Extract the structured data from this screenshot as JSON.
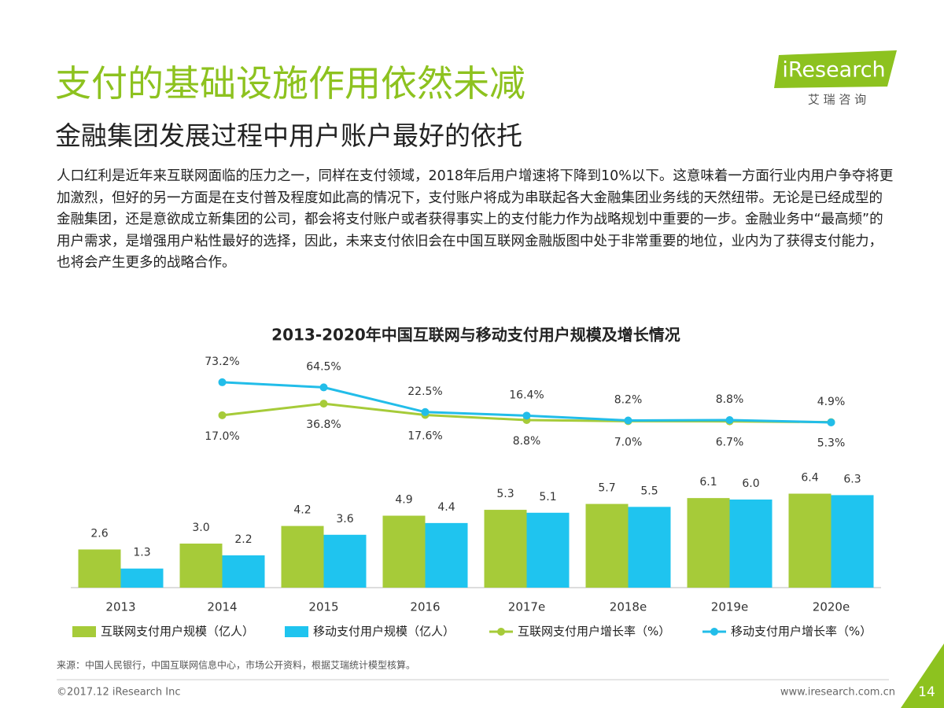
{
  "header": {
    "title": "支付的基础设施作用依然未减",
    "subtitle": "金融集团发展过程中用户账户最好的依托"
  },
  "logo": {
    "name": "iResearch",
    "subtitle": "艾 瑞 咨 询"
  },
  "body": {
    "paragraph": "人口红利是近年来互联网面临的压力之一，同样在支付领域，2018年后用户增速将下降到10%以下。这意味着一方面行业内用户争夺将更加激烈，但好的另一方面是在支付普及程度如此高的情况下，支付账户将成为串联起各大金融集团业务线的天然纽带。无论是已经成型的金融集团，还是意欲成立新集团的公司，都会将支付账户或者获得事实上的支付能力作为战略规划中重要的一步。金融业务中“最高频”的用户需求，是增强用户粘性最好的选择，因此，未来支付依旧会在中国互联网金融版图中处于非常重要的地位，业内为了获得支付能力，也将会产生更多的战略合作。"
  },
  "chart_data": {
    "type": "combo",
    "title": "2013-2020年中国互联网与移动支付用户规模及增长情况",
    "categories": [
      "2013",
      "2014",
      "2015",
      "2016",
      "2017e",
      "2018e",
      "2019e",
      "2020e"
    ],
    "ylim": [
      0,
      7.5
    ],
    "y2lim": [
      0,
      140
    ],
    "series": [
      {
        "name": "互联网支付用户规模（亿人）",
        "type": "bar",
        "color": "#a6cb39",
        "values": [
          2.6,
          3.0,
          4.2,
          4.9,
          5.3,
          5.7,
          6.1,
          6.4
        ],
        "value_labels": [
          "2.6",
          "3.0",
          "4.2",
          "4.9",
          "5.3",
          "5.7",
          "6.1",
          "6.4"
        ]
      },
      {
        "name": "移动支付用户规模（亿人）",
        "type": "bar",
        "color": "#1fc4ef",
        "values": [
          1.3,
          2.2,
          3.6,
          4.4,
          5.1,
          5.5,
          6.0,
          6.3
        ],
        "value_labels": [
          "1.3",
          "2.2",
          "3.6",
          "4.4",
          "5.1",
          "5.5",
          "6.0",
          "6.3"
        ]
      },
      {
        "name": "互联网支付用户增长率（%）",
        "type": "line",
        "axis": "y2",
        "color": "#a6cb39",
        "values": [
          null,
          17.0,
          36.8,
          17.6,
          8.8,
          7.0,
          6.7,
          5.3
        ],
        "value_labels": [
          null,
          "17.0%",
          "36.8%",
          "17.6%",
          "8.8%",
          "7.0%",
          "6.7%",
          "5.3%"
        ]
      },
      {
        "name": "移动支付用户增长率（%）",
        "type": "line",
        "axis": "y2",
        "color": "#22bde9",
        "values": [
          null,
          73.2,
          64.5,
          22.5,
          16.4,
          8.2,
          8.8,
          4.9
        ],
        "value_labels": [
          null,
          "73.2%",
          "64.5%",
          "22.5%",
          "16.4%",
          "8.2%",
          "8.8%",
          "4.9%"
        ]
      }
    ]
  },
  "footer": {
    "source": "来源：中国人民银行，中国互联网信息中心，市场公开资料，根据艾瑞统计模型核算。",
    "copyright": "©2017.12 iResearch Inc",
    "website": "www.iresearch.com.cn",
    "page": "14"
  }
}
